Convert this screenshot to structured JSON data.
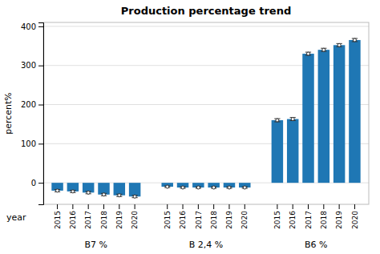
{
  "chart_data": {
    "type": "bar",
    "title": "Production percentage trend",
    "xlabel": "year",
    "ylabel": "percent%",
    "categories": [
      "2015",
      "2016",
      "2017",
      "2018",
      "2019",
      "2020"
    ],
    "series": [
      {
        "name": "B7 %",
        "values": [
          -20,
          -22,
          -25,
          -30,
          -32,
          -35
        ],
        "error": [
          3,
          3,
          3,
          3,
          3,
          3
        ]
      },
      {
        "name": "B 2,4 %",
        "values": [
          -10,
          -12,
          -12,
          -12,
          -12,
          -12
        ],
        "error": [
          2,
          2,
          2,
          2,
          2,
          2
        ]
      },
      {
        "name": "B6 %",
        "values": [
          160,
          163,
          330,
          340,
          352,
          365
        ],
        "error": [
          4,
          4,
          4,
          4,
          4,
          4
        ]
      }
    ],
    "ylim": [
      -55,
      410
    ],
    "yticks": [
      0,
      100,
      200,
      300,
      400
    ],
    "grid": true
  }
}
